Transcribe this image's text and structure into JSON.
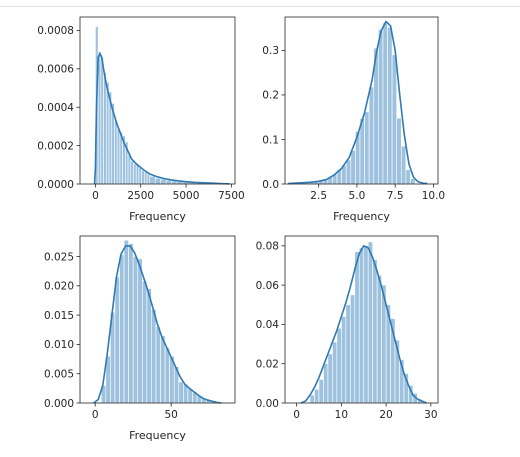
{
  "style": {
    "bar_color": "#9ec2de",
    "bar_stroke": "#ffffff",
    "kde_color": "#2f79b5",
    "axis_color": "#262626"
  },
  "chart_data": [
    {
      "type": "bar",
      "title": "",
      "xlabel": "Frequency",
      "ylabel": "",
      "xlim": [
        -850,
        7700
      ],
      "ylim": [
        0,
        0.00087
      ],
      "xticks": [
        0,
        2500,
        5000,
        7500
      ],
      "xtick_labels": [
        "0",
        "2500",
        "5000",
        "7500"
      ],
      "yticks": [
        0,
        0.0002,
        0.0004,
        0.0006,
        0.0008
      ],
      "ytick_labels": [
        "0.0000",
        "0.0002",
        "0.0004",
        "0.0006",
        "0.0008"
      ],
      "bins": [
        [
          0,
          150,
          0.00082
        ],
        [
          150,
          300,
          0.00069
        ],
        [
          300,
          450,
          0.00066
        ],
        [
          450,
          600,
          0.00058
        ],
        [
          600,
          750,
          0.00053
        ],
        [
          750,
          900,
          0.00048
        ],
        [
          900,
          1050,
          0.00042
        ],
        [
          1050,
          1200,
          0.00033
        ],
        [
          1200,
          1350,
          0.00029
        ],
        [
          1350,
          1500,
          0.00027
        ],
        [
          1500,
          1650,
          0.00025
        ],
        [
          1650,
          1800,
          0.00022
        ],
        [
          1800,
          1950,
          0.00016
        ],
        [
          1950,
          2100,
          0.00012
        ],
        [
          2100,
          2250,
          0.000105
        ],
        [
          2250,
          2400,
          0.0001
        ],
        [
          2400,
          2550,
          8.5e-05
        ],
        [
          2550,
          2700,
          7e-05
        ],
        [
          2700,
          2850,
          6e-05
        ],
        [
          2850,
          3000,
          5e-05
        ],
        [
          3000,
          3300,
          4e-05
        ],
        [
          3300,
          3600,
          3e-05
        ],
        [
          3600,
          3900,
          2.5e-05
        ],
        [
          3900,
          4200,
          2e-05
        ],
        [
          4200,
          4500,
          1.6e-05
        ],
        [
          4500,
          4800,
          1.3e-05
        ],
        [
          4800,
          5100,
          1e-05
        ],
        [
          5100,
          5500,
          8e-06
        ],
        [
          5500,
          6000,
          6e-06
        ],
        [
          6000,
          6500,
          4e-06
        ],
        [
          6500,
          7000,
          3e-06
        ]
      ],
      "kde_x": [
        -50,
        0,
        60,
        150,
        250,
        350,
        450,
        600,
        800,
        1000,
        1200,
        1400,
        1600,
        1800,
        2000,
        2200,
        2400,
        2600,
        2800,
        3000,
        3400,
        3800,
        4200,
        4600,
        5000,
        5500,
        6000,
        6500,
        7000,
        7400
      ],
      "kde_y": [
        0,
        8e-05,
        0.0004,
        0.00066,
        0.00068,
        0.00066,
        0.0006,
        0.00052,
        0.00044,
        0.00037,
        0.00031,
        0.00026,
        0.00021,
        0.00017,
        0.00013,
        0.00011,
        9.3e-05,
        7.8e-05,
        6.4e-05,
        5.2e-05,
        3.8e-05,
        2.8e-05,
        2.1e-05,
        1.6e-05,
        1.2e-05,
        8e-06,
        6e-06,
        4e-06,
        2e-06,
        1e-06
      ]
    },
    {
      "type": "bar",
      "title": "",
      "xlabel": "Frequency",
      "ylabel": "",
      "xlim": [
        0.3,
        10.3
      ],
      "ylim": [
        0,
        0.375
      ],
      "xticks": [
        2.5,
        5.0,
        7.5,
        10.0
      ],
      "xtick_labels": [
        "2.5",
        "5.0",
        "7.5",
        "10.0"
      ],
      "yticks": [
        0,
        0.1,
        0.2,
        0.3
      ],
      "ytick_labels": [
        "0.0",
        "0.1",
        "0.2",
        "0.3"
      ],
      "bins": [
        [
          1.0,
          1.3,
          0.002
        ],
        [
          1.3,
          1.6,
          0.003
        ],
        [
          1.6,
          1.9,
          0.003
        ],
        [
          1.9,
          2.2,
          0.004
        ],
        [
          2.2,
          2.5,
          0.006
        ],
        [
          2.5,
          2.8,
          0.008
        ],
        [
          2.8,
          3.1,
          0.011
        ],
        [
          3.1,
          3.4,
          0.016
        ],
        [
          3.4,
          3.7,
          0.022
        ],
        [
          3.7,
          4.0,
          0.032
        ],
        [
          4.0,
          4.3,
          0.042
        ],
        [
          4.3,
          4.6,
          0.054
        ],
        [
          4.6,
          4.9,
          0.075
        ],
        [
          4.9,
          5.2,
          0.118
        ],
        [
          5.2,
          5.5,
          0.147
        ],
        [
          5.5,
          5.8,
          0.162
        ],
        [
          5.8,
          6.1,
          0.218
        ],
        [
          6.1,
          6.4,
          0.305
        ],
        [
          6.4,
          6.7,
          0.347
        ],
        [
          6.7,
          7.0,
          0.362
        ],
        [
          7.0,
          7.3,
          0.352
        ],
        [
          7.3,
          7.6,
          0.29
        ],
        [
          7.6,
          7.9,
          0.148
        ],
        [
          7.9,
          8.2,
          0.085
        ],
        [
          8.2,
          8.5,
          0.032
        ],
        [
          8.5,
          8.8,
          0.012
        ]
      ],
      "kde_x": [
        0.5,
        1.0,
        1.5,
        2.0,
        2.5,
        3.0,
        3.5,
        4.0,
        4.5,
        5.0,
        5.5,
        6.0,
        6.3,
        6.6,
        6.9,
        7.2,
        7.5,
        7.8,
        8.1,
        8.4,
        8.7,
        9.0,
        9.3,
        9.6
      ],
      "kde_y": [
        0.001,
        0.002,
        0.003,
        0.004,
        0.006,
        0.01,
        0.02,
        0.035,
        0.06,
        0.105,
        0.16,
        0.235,
        0.3,
        0.345,
        0.365,
        0.355,
        0.3,
        0.2,
        0.11,
        0.045,
        0.015,
        0.005,
        0.002,
        0.001
      ]
    },
    {
      "type": "bar",
      "title": "",
      "xlabel": "Frequency",
      "ylabel": "",
      "xlim": [
        -10,
        92
      ],
      "ylim": [
        0,
        0.0285
      ],
      "xticks": [
        0,
        50
      ],
      "xtick_labels": [
        "0",
        "50"
      ],
      "yticks": [
        0,
        0.005,
        0.01,
        0.015,
        0.02,
        0.025
      ],
      "ytick_labels": [
        "0.000",
        "0.005",
        "0.010",
        "0.015",
        "0.020",
        "0.025"
      ],
      "bins": [
        [
          4,
          7,
          0.003
        ],
        [
          7,
          10,
          0.008
        ],
        [
          10,
          13,
          0.0155
        ],
        [
          13,
          16,
          0.0215
        ],
        [
          16,
          19,
          0.0253
        ],
        [
          19,
          22,
          0.0278
        ],
        [
          22,
          25,
          0.0272
        ],
        [
          25,
          28,
          0.025
        ],
        [
          28,
          31,
          0.0246
        ],
        [
          31,
          34,
          0.0208
        ],
        [
          34,
          37,
          0.0195
        ],
        [
          37,
          40,
          0.016
        ],
        [
          40,
          43,
          0.013
        ],
        [
          43,
          46,
          0.0115
        ],
        [
          46,
          49,
          0.0094
        ],
        [
          49,
          52,
          0.008
        ],
        [
          52,
          55,
          0.0062
        ],
        [
          55,
          58,
          0.0036
        ],
        [
          58,
          61,
          0.0032
        ],
        [
          61,
          64,
          0.0024
        ],
        [
          64,
          67,
          0.0019
        ],
        [
          67,
          70,
          0.0013
        ],
        [
          70,
          73,
          0.0008
        ],
        [
          73,
          76,
          0.0005
        ],
        [
          76,
          79,
          0.0003
        ]
      ],
      "kde_x": [
        -1,
        2,
        5,
        8,
        11,
        14,
        17,
        20,
        23,
        26,
        29,
        32,
        35,
        38,
        41,
        44,
        47,
        50,
        53,
        56,
        59,
        62,
        65,
        68,
        71,
        74,
        77,
        80,
        83
      ],
      "kde_y": [
        0,
        0.0006,
        0.003,
        0.0085,
        0.015,
        0.0215,
        0.0254,
        0.0268,
        0.0268,
        0.0256,
        0.0236,
        0.0213,
        0.0189,
        0.0162,
        0.0134,
        0.0112,
        0.0095,
        0.0078,
        0.0061,
        0.0044,
        0.0032,
        0.0025,
        0.0019,
        0.0013,
        0.0008,
        0.0005,
        0.0003,
        0.0001,
        0
      ]
    },
    {
      "type": "bar",
      "title": "",
      "xlabel": "",
      "ylabel": "",
      "xlim": [
        -2.6,
        31.6
      ],
      "ylim": [
        0,
        0.085
      ],
      "xticks": [
        0,
        10,
        20,
        30
      ],
      "xtick_labels": [
        "0",
        "10",
        "20",
        "30"
      ],
      "yticks": [
        0,
        0.02,
        0.04,
        0.06,
        0.08
      ],
      "ytick_labels": [
        "0.00",
        "0.02",
        "0.04",
        "0.06",
        "0.08"
      ],
      "bins": [
        [
          3,
          4,
          0.004
        ],
        [
          4,
          5,
          0.007
        ],
        [
          5,
          6,
          0.012
        ],
        [
          6,
          7,
          0.02
        ],
        [
          7,
          8,
          0.025
        ],
        [
          8,
          9,
          0.031
        ],
        [
          9,
          10,
          0.038
        ],
        [
          10,
          11,
          0.044
        ],
        [
          11,
          12,
          0.05
        ],
        [
          12,
          13,
          0.055
        ],
        [
          13,
          14,
          0.077
        ],
        [
          14,
          15,
          0.079
        ],
        [
          15,
          16,
          0.08
        ],
        [
          16,
          17,
          0.082
        ],
        [
          17,
          18,
          0.073
        ],
        [
          18,
          19,
          0.065
        ],
        [
          19,
          20,
          0.06
        ],
        [
          20,
          21,
          0.05
        ],
        [
          21,
          22,
          0.043
        ],
        [
          22,
          23,
          0.032
        ],
        [
          23,
          24,
          0.022
        ],
        [
          24,
          25,
          0.015
        ],
        [
          25,
          26,
          0.009
        ],
        [
          26,
          27,
          0.005
        ],
        [
          27,
          28,
          0.002
        ]
      ],
      "kde_x": [
        1,
        2,
        3,
        4,
        5,
        6,
        7,
        8,
        9,
        10,
        11,
        12,
        13,
        14,
        15,
        16,
        17,
        18,
        19,
        20,
        21,
        22,
        23,
        24,
        25,
        26,
        27,
        28,
        29
      ],
      "kde_y": [
        0,
        0.001,
        0.004,
        0.008,
        0.013,
        0.019,
        0.025,
        0.031,
        0.037,
        0.044,
        0.051,
        0.059,
        0.068,
        0.076,
        0.08,
        0.079,
        0.074,
        0.067,
        0.059,
        0.05,
        0.041,
        0.032,
        0.023,
        0.015,
        0.009,
        0.004,
        0.002,
        0.001,
        0
      ]
    }
  ]
}
